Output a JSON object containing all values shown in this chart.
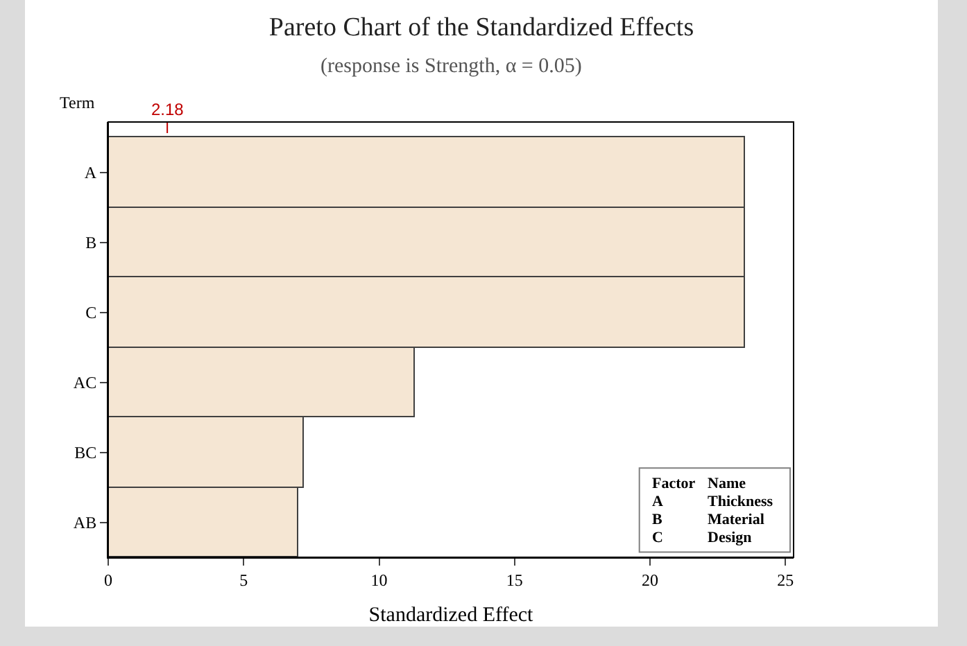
{
  "chart_data": {
    "type": "bar",
    "orientation": "horizontal",
    "title": "Pareto Chart of the Standardized Effects",
    "subtitle": "(response is Strength, α = 0.05)",
    "xlabel": "Standardized Effect",
    "ylabel": "Term",
    "categories": [
      "A",
      "B",
      "C",
      "AC",
      "BC",
      "AB"
    ],
    "values": [
      23.5,
      23.5,
      23.5,
      11.3,
      7.2,
      7.0
    ],
    "color": "#f5e6d3",
    "xlim": [
      0,
      25.3
    ],
    "xticks": [
      0,
      5,
      10,
      15,
      20,
      25
    ],
    "ref_lines": [
      {
        "axis": "x",
        "value": 2.18,
        "label": "2.18",
        "color": "#c00000",
        "line_style": "dashed"
      }
    ],
    "annotations": [
      "Factor",
      "Name",
      "A",
      "Thickness",
      "B",
      "Material",
      "C",
      "Design"
    ],
    "grid": false,
    "legend": false
  }
}
